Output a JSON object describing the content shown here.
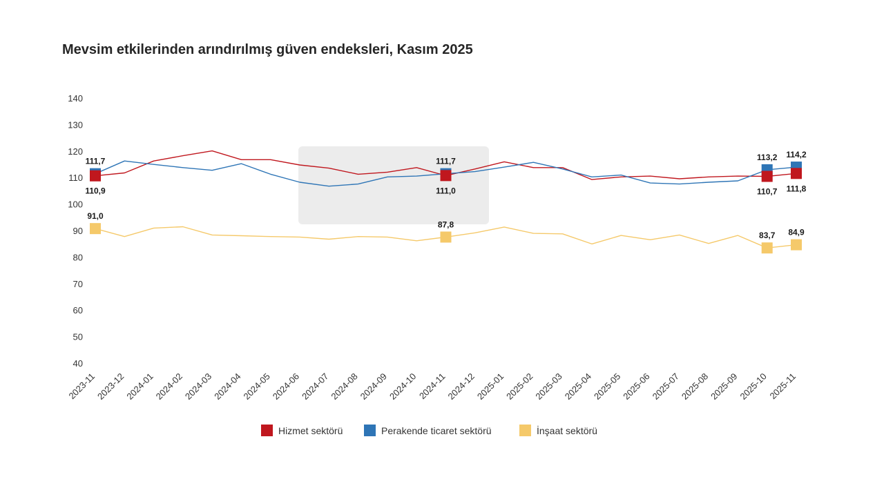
{
  "chart_data": {
    "type": "line",
    "title": "Mevsim etkilerinden arındırılmış güven endeksleri, Kasım 2025",
    "xlabel": "",
    "ylabel": "",
    "ylim": [
      40,
      140
    ],
    "yticks": [
      40,
      50,
      60,
      70,
      80,
      90,
      100,
      110,
      120,
      130,
      140
    ],
    "grid": false,
    "legend_position": "bottom",
    "categories": [
      "2023-11",
      "2023-12",
      "2024-01",
      "2024-02",
      "2024-03",
      "2024-04",
      "2024-05",
      "2024-06",
      "2024-07",
      "2024-08",
      "2024-09",
      "2024-10",
      "2024-11",
      "2024-12",
      "2025-01",
      "2025-02",
      "2025-03",
      "2025-04",
      "2025-05",
      "2025-06",
      "2025-07",
      "2025-08",
      "2025-09",
      "2025-10",
      "2025-11"
    ],
    "series": [
      {
        "name": "Hizmet sektörü",
        "color": "#c0171e",
        "values": [
          110.9,
          112.0,
          116.5,
          118.5,
          120.3,
          117.0,
          117.0,
          115.0,
          113.8,
          111.5,
          112.3,
          114.0,
          111.0,
          113.5,
          116.2,
          114.0,
          114.0,
          109.5,
          110.5,
          110.8,
          109.8,
          110.5,
          110.8,
          110.7,
          111.8
        ]
      },
      {
        "name": "Perakende ticaret sektörü",
        "color": "#2e75b6",
        "values": [
          111.7,
          116.5,
          115.2,
          114.0,
          113.0,
          115.5,
          111.5,
          108.5,
          107.0,
          107.8,
          110.5,
          110.8,
          111.7,
          112.5,
          114.2,
          116.0,
          113.5,
          110.5,
          111.2,
          108.2,
          107.8,
          108.5,
          109.0,
          113.2,
          114.2
        ]
      },
      {
        "name": "İnşaat sektörü",
        "color": "#f5c96a",
        "values": [
          91.0,
          88.0,
          91.2,
          91.7,
          88.6,
          88.3,
          88.0,
          87.8,
          87.0,
          88.0,
          87.8,
          86.4,
          87.8,
          89.4,
          91.6,
          89.2,
          89.0,
          85.2,
          88.4,
          86.8,
          88.6,
          85.4,
          88.4,
          83.7,
          84.9
        ]
      }
    ],
    "marked_points": [
      {
        "series": 0,
        "index": 0,
        "label": "110,9",
        "pos": "below"
      },
      {
        "series": 1,
        "index": 0,
        "label": "111,7",
        "pos": "above"
      },
      {
        "series": 2,
        "index": 0,
        "label": "91,0",
        "pos": "above"
      },
      {
        "series": 0,
        "index": 12,
        "label": "111,0",
        "pos": "below"
      },
      {
        "series": 1,
        "index": 12,
        "label": "111,7",
        "pos": "above"
      },
      {
        "series": 2,
        "index": 12,
        "label": "87,8",
        "pos": "above"
      },
      {
        "series": 0,
        "index": 23,
        "label": "110,7",
        "pos": "below"
      },
      {
        "series": 1,
        "index": 23,
        "label": "113,2",
        "pos": "above"
      },
      {
        "series": 2,
        "index": 23,
        "label": "83,7",
        "pos": "above"
      },
      {
        "series": 0,
        "index": 24,
        "label": "111,8",
        "pos": "below"
      },
      {
        "series": 1,
        "index": 24,
        "label": "114,2",
        "pos": "above"
      },
      {
        "series": 2,
        "index": 24,
        "label": "84,9",
        "pos": "above"
      }
    ]
  }
}
